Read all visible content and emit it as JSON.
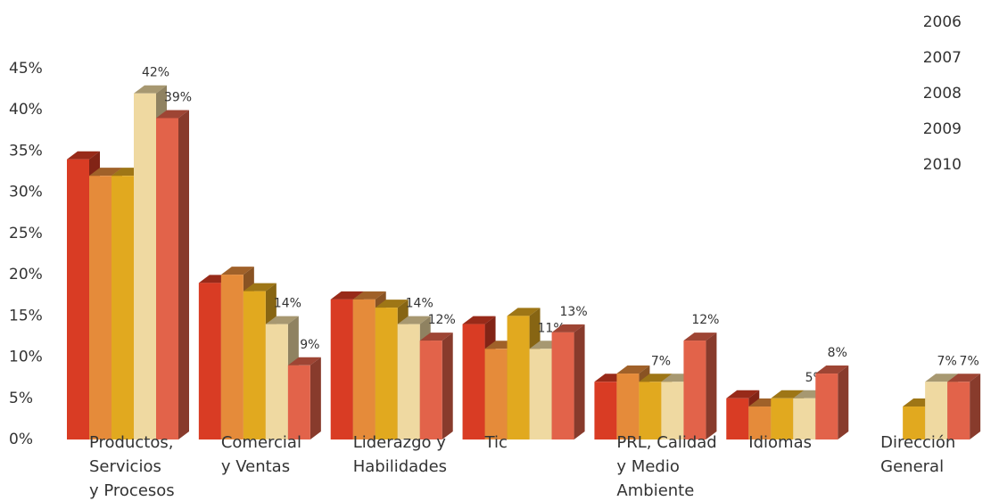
{
  "chart_data": {
    "type": "bar3d",
    "categories": [
      [
        "Productos,",
        "Servicios",
        "y Procesos"
      ],
      [
        "Comercial",
        "y Ventas"
      ],
      [
        "Liderazgo y",
        "Habilidades"
      ],
      [
        "Tic"
      ],
      [
        "PRL, Calidad",
        "y Medio",
        "Ambiente"
      ],
      [
        "Idiomas"
      ],
      [
        "Dirección",
        "General"
      ]
    ],
    "series": [
      {
        "name": "2006",
        "color": "#d93c24",
        "values": [
          34,
          19,
          17,
          14,
          7,
          5,
          null
        ],
        "value_labels": [
          null,
          null,
          null,
          null,
          null,
          null,
          null
        ]
      },
      {
        "name": "2007",
        "color": "#e58b3a",
        "values": [
          32,
          20,
          17,
          11,
          8,
          4,
          null
        ],
        "value_labels": [
          null,
          null,
          null,
          null,
          null,
          null,
          null
        ]
      },
      {
        "name": "2008",
        "color": "#e1a91f",
        "values": [
          32,
          18,
          16,
          15,
          7,
          5,
          4
        ],
        "value_labels": [
          null,
          null,
          null,
          null,
          "7%",
          null,
          null
        ]
      },
      {
        "name": "2009",
        "color": "#efd9a1",
        "values": [
          42,
          14,
          14,
          11,
          7,
          5,
          7
        ],
        "value_labels": [
          "42%",
          "14%",
          "14%",
          "11%",
          null,
          "5%",
          "7%"
        ]
      },
      {
        "name": "2010",
        "color": "#e2634a",
        "values": [
          39,
          9,
          12,
          13,
          12,
          8,
          7
        ],
        "value_labels": [
          "39%",
          "9%",
          "12%",
          "13%",
          "12%",
          "8%",
          "7%"
        ]
      }
    ],
    "ylim": [
      0,
      45
    ],
    "yticks": [
      {
        "value": 0,
        "label": "0%"
      },
      {
        "value": 5,
        "label": "5%"
      },
      {
        "value": 10,
        "label": "10%"
      },
      {
        "value": 15,
        "label": "15%"
      },
      {
        "value": 20,
        "label": "20%"
      },
      {
        "value": 25,
        "label": "25%"
      },
      {
        "value": 30,
        "label": "30%"
      },
      {
        "value": 35,
        "label": "35%"
      },
      {
        "value": 40,
        "label": "40%"
      },
      {
        "value": 45,
        "label": "45%"
      }
    ]
  }
}
